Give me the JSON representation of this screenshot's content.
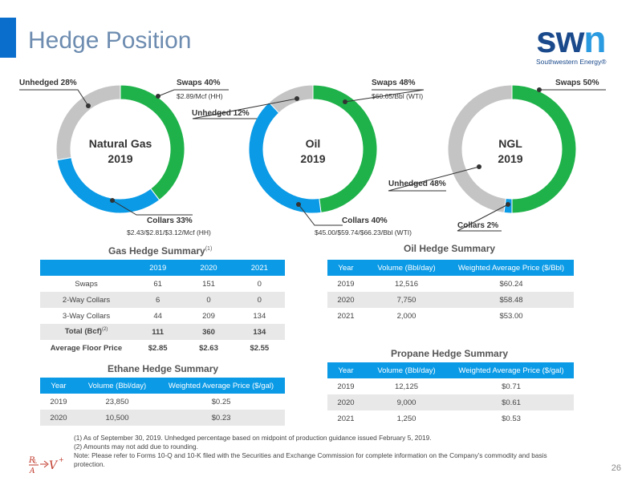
{
  "page": {
    "title": "Hedge Position",
    "page_number": "26"
  },
  "logo": {
    "word_a": "sw",
    "word_b": "n",
    "subtitle": "Southwestern Energy®"
  },
  "colors": {
    "swaps": "#1fb24a",
    "collars": "#0a9ae6",
    "unhedged": "#c4c4c4",
    "title": "#6d8cb0",
    "accent": "#0a6ecd"
  },
  "chart_data": [
    {
      "type": "pie",
      "center_line1": "Natural Gas",
      "center_line2": "2019",
      "slices": [
        {
          "name": "Swaps",
          "value": 40,
          "label": "Swaps 40%",
          "sub": "$2.89/Mcf (HH)"
        },
        {
          "name": "Collars",
          "value": 33,
          "label": "Collars 33%",
          "sub": "$2.43/$2.81/$3.12/Mcf (HH)"
        },
        {
          "name": "Unhedged",
          "value": 28,
          "label": "Unhedged 28%",
          "sub": ""
        }
      ]
    },
    {
      "type": "pie",
      "center_line1": "Oil",
      "center_line2": "2019",
      "slices": [
        {
          "name": "Swaps",
          "value": 48,
          "label": "Swaps 48%",
          "sub": "$60.65/Bbl (WTI)"
        },
        {
          "name": "Collars",
          "value": 40,
          "label": "Collars 40%",
          "sub": "$45.00/$59.74/$66.23/Bbl (WTI)"
        },
        {
          "name": "Unhedged",
          "value": 12,
          "label": "Unhedged 12%",
          "sub": ""
        }
      ]
    },
    {
      "type": "pie",
      "center_line1": "NGL",
      "center_line2": "2019",
      "slices": [
        {
          "name": "Swaps",
          "value": 50,
          "label": "Swaps 50%",
          "sub": ""
        },
        {
          "name": "Collars",
          "value": 2,
          "label": "Collars 2%",
          "sub": ""
        },
        {
          "name": "Unhedged",
          "value": 48,
          "label": "Unhedged 48%",
          "sub": ""
        }
      ]
    }
  ],
  "gas_table": {
    "title": "Gas Hedge Summary",
    "title_sup": "(1)",
    "headers": [
      "",
      "2019",
      "2020",
      "2021"
    ],
    "rows": [
      [
        "Swaps",
        "61",
        "151",
        "0"
      ],
      [
        "2-Way Collars",
        "6",
        "0",
        "0"
      ],
      [
        "3-Way Collars",
        "44",
        "209",
        "134"
      ]
    ],
    "total": {
      "label": "Total (Bcf)",
      "sup": "(2)",
      "values": [
        "111",
        "360",
        "134"
      ]
    },
    "floor": {
      "label": "Average Floor Price",
      "values": [
        "$2.85",
        "$2.63",
        "$2.55"
      ]
    }
  },
  "oil_table": {
    "title": "Oil Hedge Summary",
    "headers": [
      "Year",
      "Volume (Bbl/day)",
      "Weighted Average Price ($/Bbl)"
    ],
    "rows": [
      [
        "2019",
        "12,516",
        "$60.24"
      ],
      [
        "2020",
        "7,750",
        "$58.48"
      ],
      [
        "2021",
        "2,000",
        "$53.00"
      ]
    ]
  },
  "ethane_table": {
    "title": "Ethane Hedge Summary",
    "headers": [
      "Year",
      "Volume (Bbl/day)",
      "Weighted Average Price ($/gal)"
    ],
    "rows": [
      [
        "2019",
        "23,850",
        "$0.25"
      ],
      [
        "2020",
        "10,500",
        "$0.23"
      ]
    ]
  },
  "propane_table": {
    "title": "Propane Hedge Summary",
    "headers": [
      "Year",
      "Volume (Bbl/day)",
      "Weighted Average Price ($/gal)"
    ],
    "rows": [
      [
        "2019",
        "12,125",
        "$0.71"
      ],
      [
        "2020",
        "9,000",
        "$0.61"
      ],
      [
        "2021",
        "1,250",
        "$0.53"
      ]
    ]
  },
  "footnotes": [
    "(1)    As of September 30, 2019. Unhedged percentage based on midpoint of production guidance issued February 5, 2019.",
    "(2)    Amounts may not add due to rounding.",
    "Note: Please refer to Forms 10-Q and 10-K filed with the Securities and Exchange Commission for complete information on the Company’s commodity and basis protection."
  ]
}
